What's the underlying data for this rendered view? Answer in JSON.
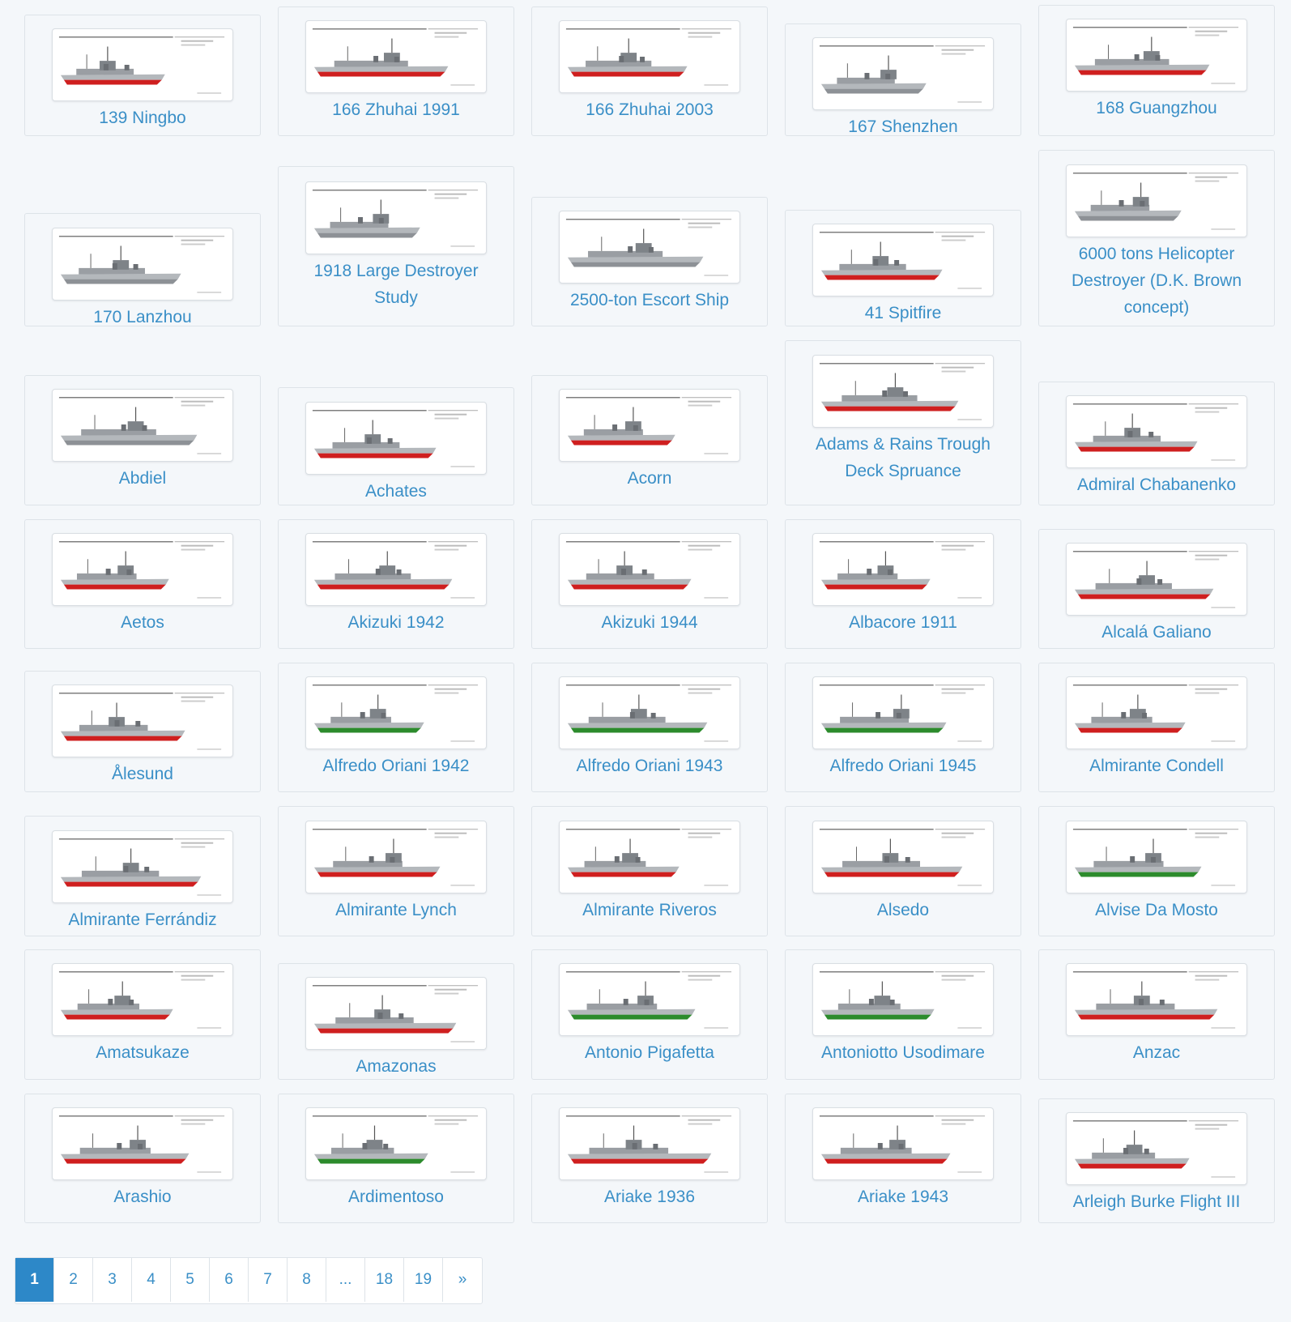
{
  "colors": {
    "link": "#3a8fc7",
    "active_page": "#2d88c8",
    "hull_red": "#cf1f1f",
    "hull_green": "#2c8b2c",
    "hull_grey": "#8d9196"
  },
  "grid": {
    "items": [
      {
        "caption": "139 Ningbo",
        "hull": "red"
      },
      {
        "caption": "166 Zhuhai 1991",
        "hull": "red"
      },
      {
        "caption": "166 Zhuhai 2003",
        "hull": "red"
      },
      {
        "caption": "167 Shenzhen",
        "hull": "grey"
      },
      {
        "caption": "168 Guangzhou",
        "hull": "red"
      },
      {
        "caption": "170 Lanzhou",
        "hull": "grey"
      },
      {
        "caption": "1918 Large Destroyer Study",
        "hull": "grey"
      },
      {
        "caption": "2500-ton Escort Ship",
        "hull": "grey"
      },
      {
        "caption": "41 Spitfire",
        "hull": "red"
      },
      {
        "caption": "6000 tons Helicopter Destroyer (D.K. Brown concept)",
        "hull": "grey"
      },
      {
        "caption": "Abdiel",
        "hull": "grey"
      },
      {
        "caption": "Achates",
        "hull": "red"
      },
      {
        "caption": "Acorn",
        "hull": "red"
      },
      {
        "caption": "Adams & Rains Trough Deck Spruance",
        "hull": "red"
      },
      {
        "caption": "Admiral Chabanenko",
        "hull": "red"
      },
      {
        "caption": "Aetos",
        "hull": "red"
      },
      {
        "caption": "Akizuki 1942",
        "hull": "red"
      },
      {
        "caption": "Akizuki 1944",
        "hull": "red"
      },
      {
        "caption": "Albacore 1911",
        "hull": "red"
      },
      {
        "caption": "Alcalá Galiano",
        "hull": "red"
      },
      {
        "caption": "Ålesund",
        "hull": "red"
      },
      {
        "caption": "Alfredo Oriani 1942",
        "hull": "green"
      },
      {
        "caption": "Alfredo Oriani 1943",
        "hull": "green"
      },
      {
        "caption": "Alfredo Oriani 1945",
        "hull": "green"
      },
      {
        "caption": "Almirante Condell",
        "hull": "red"
      },
      {
        "caption": "Almirante Ferrándiz",
        "hull": "red"
      },
      {
        "caption": "Almirante Lynch",
        "hull": "red"
      },
      {
        "caption": "Almirante Riveros",
        "hull": "red"
      },
      {
        "caption": "Alsedo",
        "hull": "red"
      },
      {
        "caption": "Alvise Da Mosto",
        "hull": "green"
      },
      {
        "caption": "Amatsukaze",
        "hull": "red"
      },
      {
        "caption": "Amazonas",
        "hull": "red"
      },
      {
        "caption": "Antonio Pigafetta",
        "hull": "green"
      },
      {
        "caption": "Antoniotto Usodimare",
        "hull": "green"
      },
      {
        "caption": "Anzac",
        "hull": "red"
      },
      {
        "caption": "Arashio",
        "hull": "red"
      },
      {
        "caption": "Ardimentoso",
        "hull": "green"
      },
      {
        "caption": "Ariake 1936",
        "hull": "red"
      },
      {
        "caption": "Ariake 1943",
        "hull": "red"
      },
      {
        "caption": "Arleigh Burke Flight III",
        "hull": "red"
      }
    ]
  },
  "pagination": {
    "pages": [
      "1",
      "2",
      "3",
      "4",
      "5",
      "6",
      "7",
      "8",
      "...",
      "18",
      "19",
      "»"
    ],
    "active": "1"
  }
}
